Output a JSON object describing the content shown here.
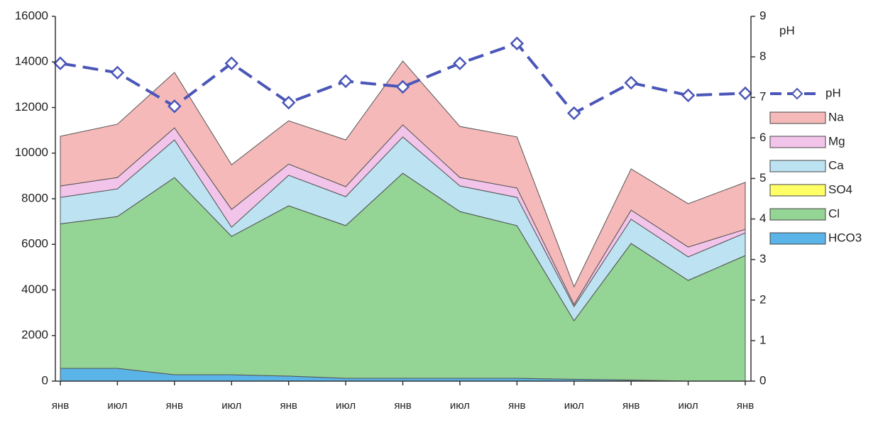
{
  "chart_data": {
    "type": "area",
    "categories": [
      "янв",
      "июл",
      "янв",
      "июл",
      "янв",
      "июл",
      "янв",
      "июл",
      "янв",
      "июл",
      "янв",
      "июл",
      "янв"
    ],
    "series": [
      {
        "name": "HCO3",
        "color": "#5ab4e8",
        "values": [
          560,
          560,
          280,
          280,
          220,
          125,
          125,
          125,
          125,
          80,
          50,
          0,
          0
        ]
      },
      {
        "name": "Cl",
        "color": "#94d494",
        "values": [
          6340,
          6660,
          8650,
          6070,
          7470,
          6695,
          8995,
          7315,
          6695,
          2570,
          5990,
          4420,
          5510
        ]
      },
      {
        "name": "SO4",
        "color": "#ffff66",
        "values": [
          0,
          0,
          0,
          0,
          0,
          0,
          0,
          0,
          0,
          0,
          0,
          0,
          0
        ]
      },
      {
        "name": "Ca",
        "color": "#bde3f2",
        "values": [
          1160,
          1210,
          1650,
          400,
          1340,
          1270,
          1590,
          1120,
          1240,
          620,
          1060,
          1030,
          990
        ]
      },
      {
        "name": "Mg",
        "color": "#f3c4ea",
        "values": [
          500,
          500,
          530,
          780,
          490,
          440,
          530,
          370,
          410,
          90,
          400,
          430,
          160
        ]
      },
      {
        "name": "Na",
        "color": "#f5b9b9",
        "values": [
          2180,
          2340,
          2430,
          1960,
          1900,
          2050,
          2800,
          2240,
          2240,
          780,
          1810,
          1900,
          2060
        ]
      },
      {
        "name": "pH",
        "color": "#4a56b8",
        "axis": "y2",
        "type": "line",
        "values": [
          7.84,
          7.61,
          6.78,
          7.84,
          6.87,
          7.4,
          7.26,
          7.84,
          8.33,
          6.61,
          7.36,
          7.05,
          7.1
        ]
      }
    ],
    "ylim": [
      0,
      16000
    ],
    "yticks": [
      0,
      2000,
      4000,
      6000,
      8000,
      10000,
      12000,
      14000,
      16000
    ],
    "y2label": "pH",
    "y2lim": [
      0,
      9
    ],
    "y2ticks": [
      0,
      1,
      2,
      3,
      4,
      5,
      6,
      7,
      8,
      9
    ],
    "grid": false,
    "legend": "right"
  }
}
